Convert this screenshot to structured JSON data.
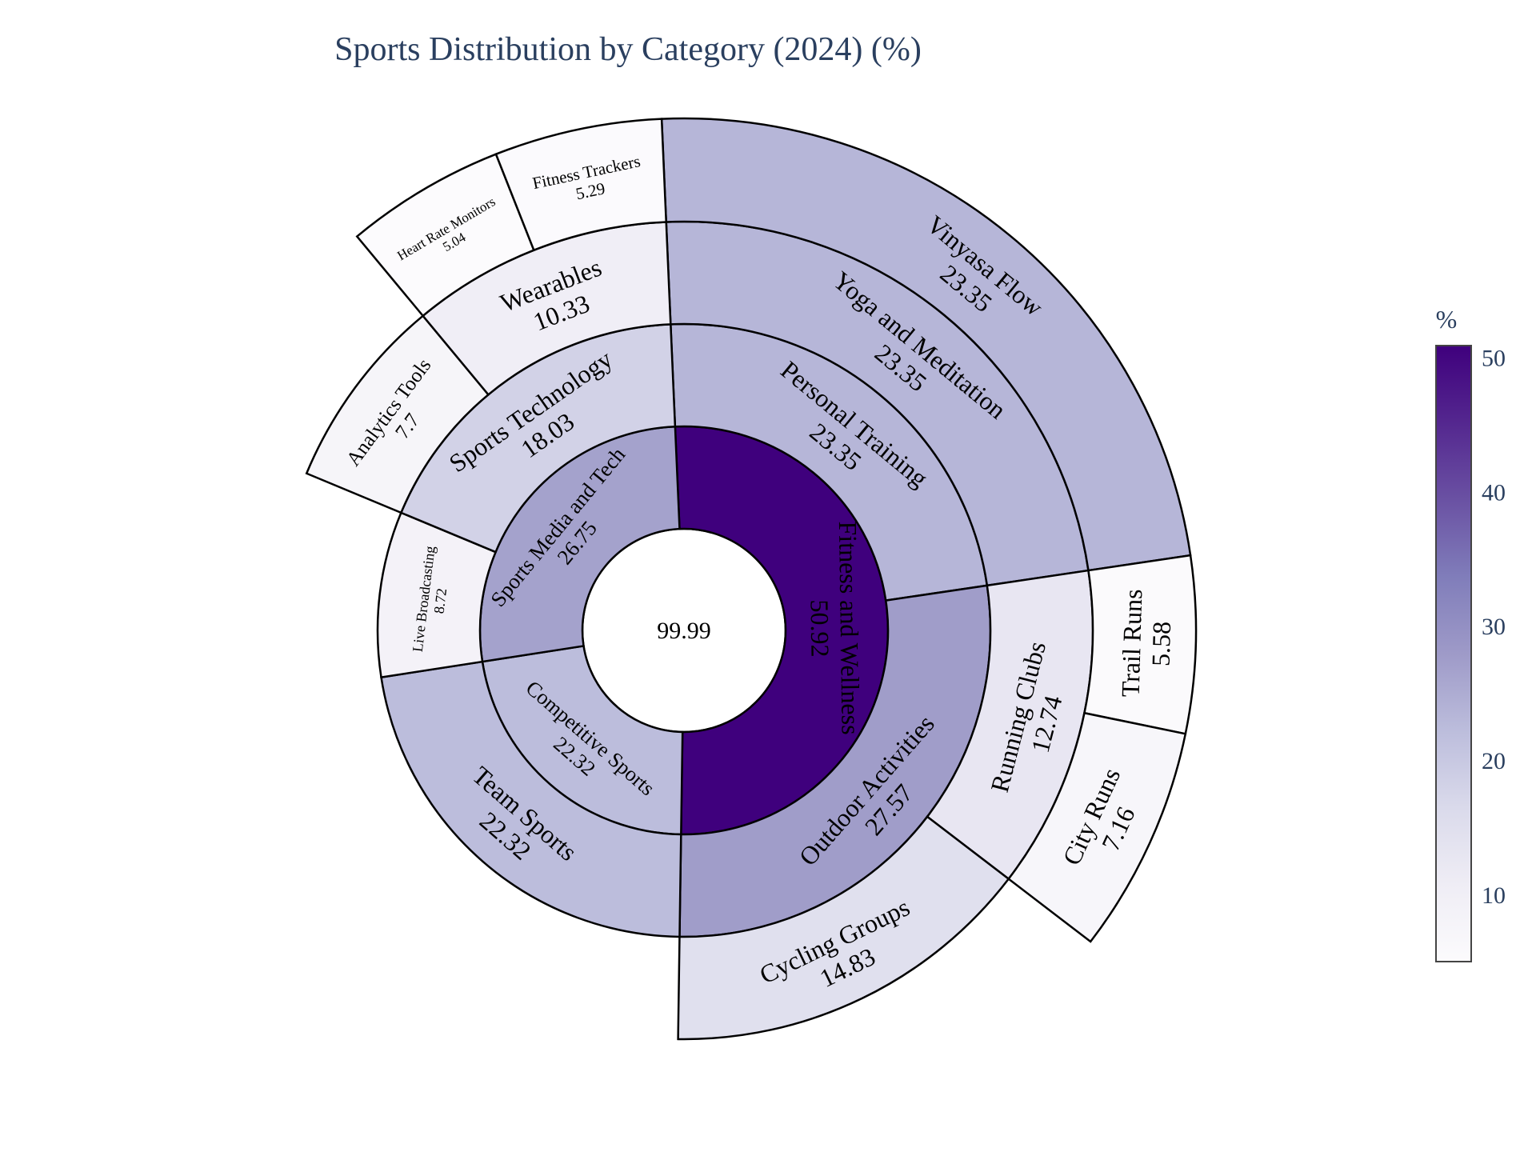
{
  "chart_data": {
    "type": "sunburst",
    "title": "Sports Distribution by Category (2024) (%)",
    "unit": "%",
    "root": {
      "label": "",
      "value": 99.99
    },
    "children": [
      {
        "label": "Fitness and Wellness",
        "value": 50.92,
        "children": [
          {
            "label": "Personal Training",
            "value": 23.35,
            "children": [
              {
                "label": "Yoga and Meditation",
                "value": 23.35,
                "children": [
                  {
                    "label": "Vinyasa Flow",
                    "value": 23.35
                  }
                ]
              }
            ]
          },
          {
            "label": "Outdoor Activities",
            "value": 27.57,
            "children": [
              {
                "label": "Running Clubs",
                "value": 12.74,
                "children": [
                  {
                    "label": "Trail Runs",
                    "value": 5.58
                  },
                  {
                    "label": "City Runs",
                    "value": 7.16
                  }
                ]
              },
              {
                "label": "Cycling Groups",
                "value": 14.83
              }
            ]
          }
        ]
      },
      {
        "label": "Competitive Sports",
        "value": 22.32,
        "children": [
          {
            "label": "Team Sports",
            "value": 22.32
          }
        ]
      },
      {
        "label": "Sports Media and Tech",
        "value": 26.75,
        "children": [
          {
            "label": "Live Broadcasting",
            "value": 8.72
          },
          {
            "label": "Sports Technology",
            "value": 18.03,
            "children": [
              {
                "label": "Analytics Tools",
                "value": 7.7
              },
              {
                "label": "Wearables",
                "value": 10.33,
                "children": [
                  {
                    "label": "Heart Rate Monitors",
                    "value": 5.04
                  },
                  {
                    "label": "Fitness Trackers",
                    "value": 5.29
                  }
                ]
              }
            ]
          }
        ]
      }
    ],
    "colorscale": {
      "name": "Purples",
      "min": 5.04,
      "max": 50.92,
      "stops": [
        {
          "t": 0.0,
          "color": "#fcfbfd"
        },
        {
          "t": 0.125,
          "color": "#efedf5"
        },
        {
          "t": 0.25,
          "color": "#dadaeb"
        },
        {
          "t": 0.375,
          "color": "#bcbddc"
        },
        {
          "t": 0.5,
          "color": "#9e9ac8"
        },
        {
          "t": 0.625,
          "color": "#807dba"
        },
        {
          "t": 0.75,
          "color": "#6a51a3"
        },
        {
          "t": 0.875,
          "color": "#54278f"
        },
        {
          "t": 1.0,
          "color": "#3f007d"
        }
      ]
    },
    "colorbar": {
      "title": "%",
      "ticks": [
        10,
        20,
        30,
        40,
        50
      ]
    }
  }
}
